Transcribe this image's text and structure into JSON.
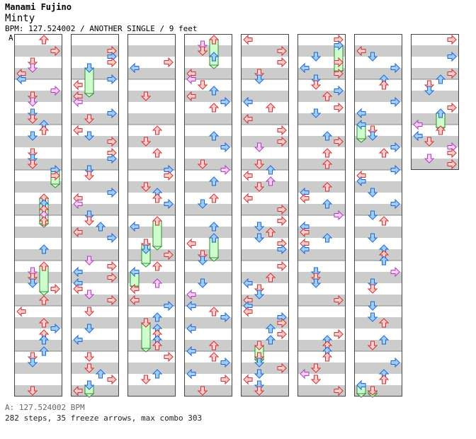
{
  "header": {
    "artist": "Manami Fujino",
    "title": "Minty",
    "info": "BPM: 127.524002 / ANOTHER SINGLE / 9 feet"
  },
  "section_marker": "A",
  "footer": {
    "bpm_line": "A: 127.524002 BPM",
    "stats_line": "282 steps, 35 freeze arrows, max combo 303"
  },
  "colors": {
    "stripe": "#cccccc",
    "border": "#444444",
    "red_fill": "#ffcccc",
    "red_stroke": "#cc3333",
    "blue_fill": "#9ccfff",
    "blue_stroke": "#2266cc",
    "pink_fill": "#ffccff",
    "pink_stroke": "#aa44aa",
    "freeze_fill": "#ccffcc",
    "freeze_stroke": "#338833"
  },
  "chart_data": {
    "type": "step_chart",
    "columns": 8,
    "measures_per_column": 8,
    "lanes": [
      "left",
      "down",
      "up",
      "right"
    ],
    "measures_shown": 59,
    "freeze_count": 35,
    "step_count": 282,
    "max_combo": 303
  }
}
